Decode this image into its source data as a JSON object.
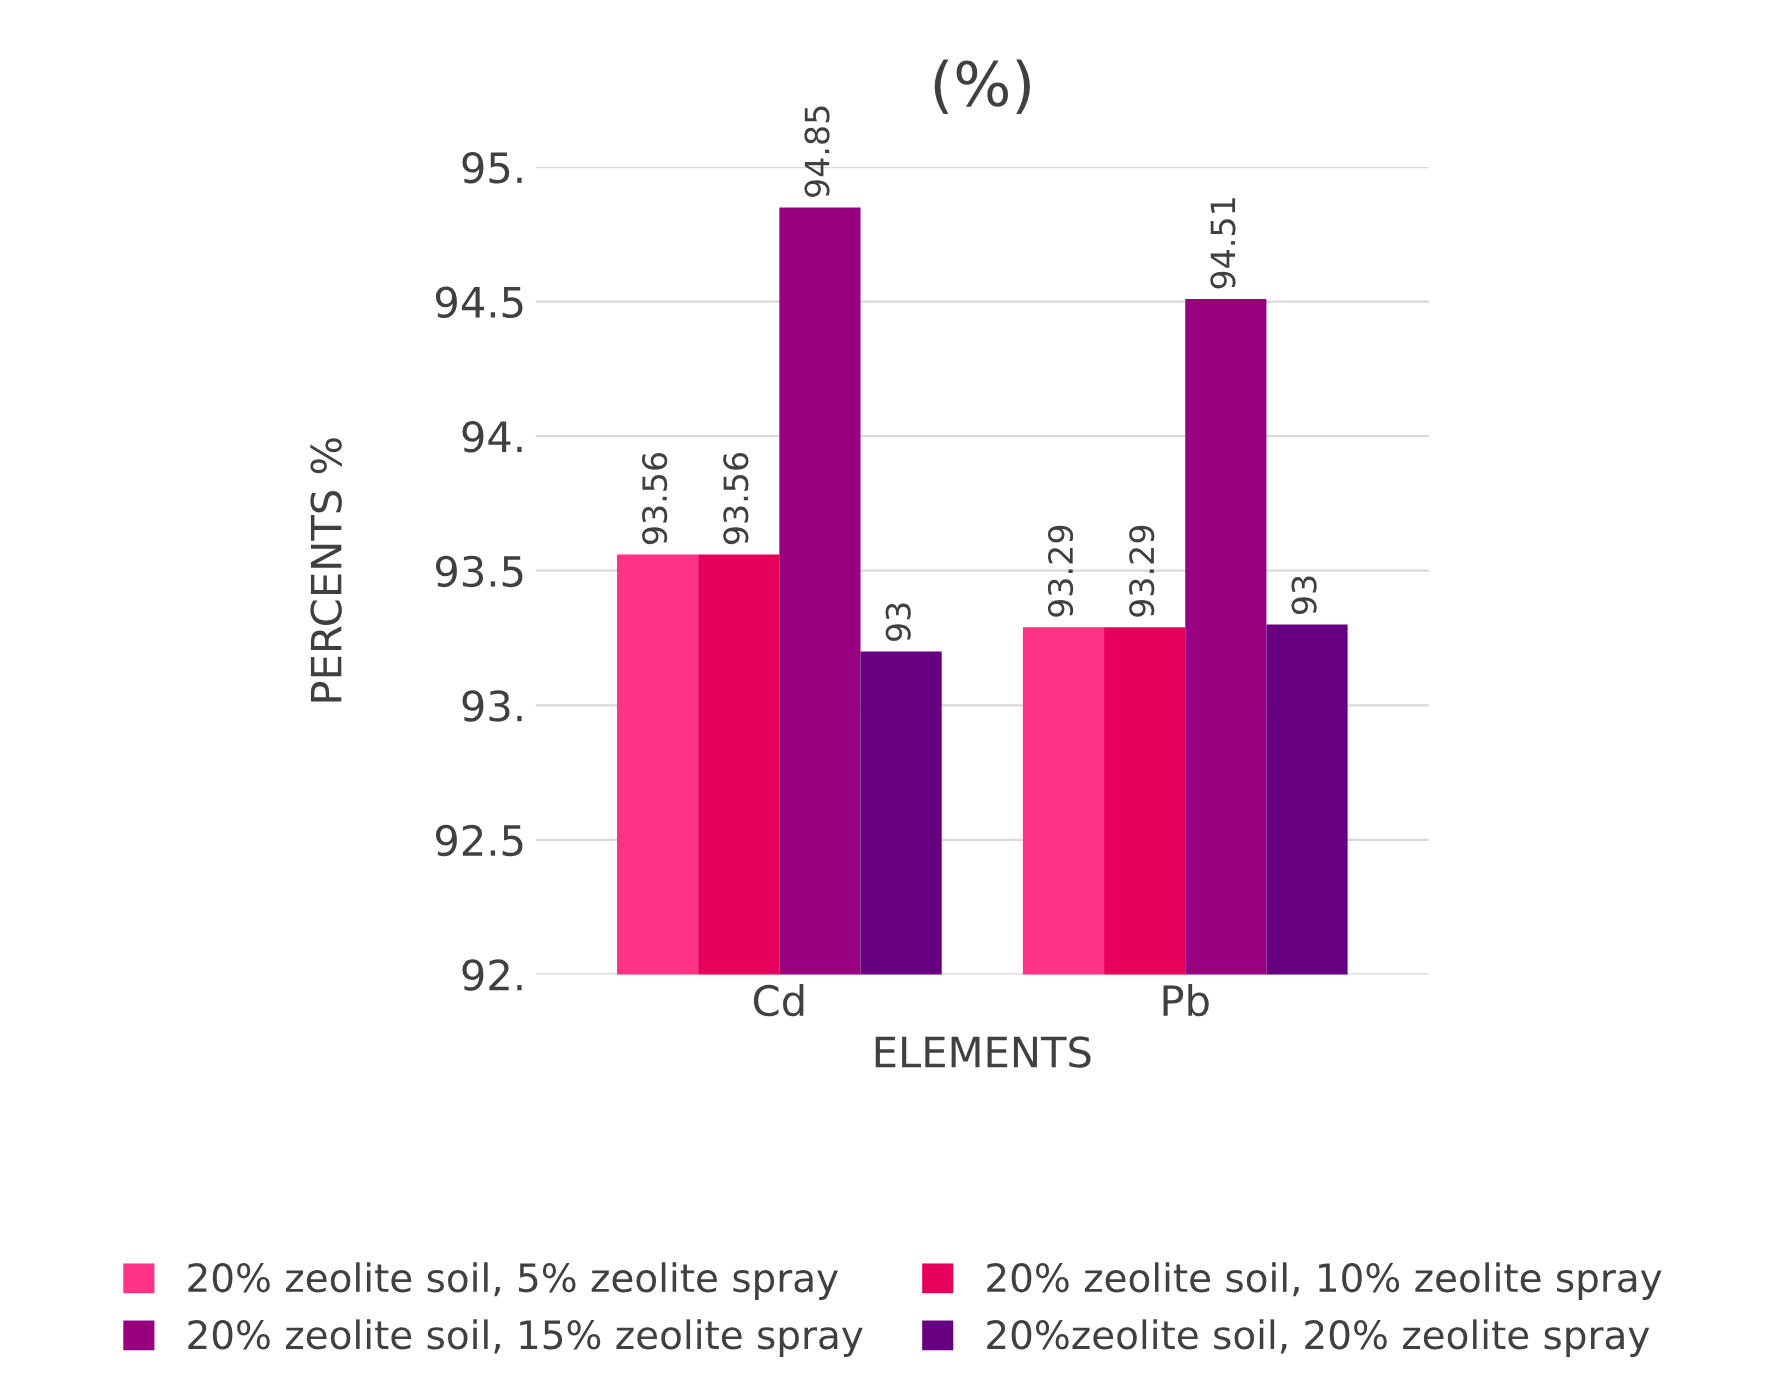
{
  "chart_data": {
    "type": "bar",
    "title": "(%)",
    "xlabel": "ELEMENTS",
    "ylabel": "PERCENTS %",
    "categories": [
      "Cd",
      "Pb"
    ],
    "series": [
      {
        "name": "20% zeolite soil, 5% zeolite spray",
        "color": "#ff3385",
        "values": [
          93.56,
          93.29
        ],
        "value_labels": [
          "93.56",
          "93.29"
        ]
      },
      {
        "name": "20% zeolite soil, 10% zeolite spray",
        "color": "#e6005c",
        "values": [
          93.56,
          93.29
        ],
        "value_labels": [
          "93.56",
          "93.29"
        ]
      },
      {
        "name": "20% zeolite soil, 15% zeolite spray",
        "color": "#990080",
        "values": [
          94.85,
          94.51
        ],
        "value_labels": [
          "94.85",
          "94.51"
        ]
      },
      {
        "name": "20%zeolite soil, 20% zeolite spray",
        "color": "#660080",
        "values": [
          93.2,
          93.3
        ],
        "value_labels": [
          "93",
          "93"
        ]
      }
    ],
    "ylim": [
      92,
      95
    ],
    "yticks": [
      {
        "value": 92,
        "label": "92."
      },
      92.5,
      {
        "value": 93,
        "label": "93."
      },
      93.5,
      {
        "value": 94,
        "label": "94."
      },
      94.5,
      {
        "value": 95,
        "label": "95."
      }
    ],
    "grid": "y",
    "legend": "bottom"
  }
}
